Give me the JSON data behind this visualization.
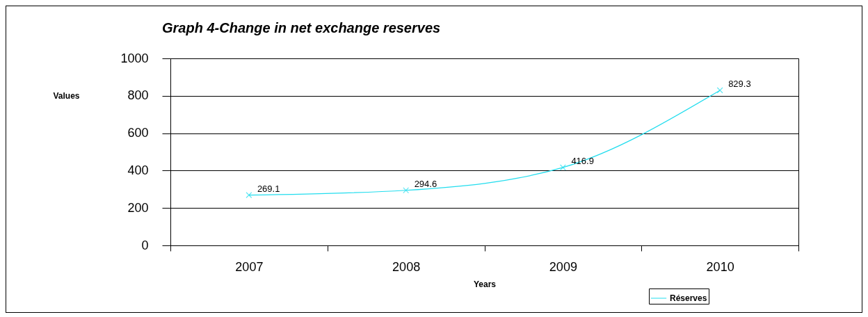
{
  "chart_data": {
    "type": "line",
    "title": "Graph 4-Change in net exchange reserves",
    "xlabel": "Years",
    "ylabel": "Values",
    "categories": [
      "2007",
      "2008",
      "2009",
      "2010"
    ],
    "series": [
      {
        "name": "Réserves",
        "color": "#22ddee",
        "values": [
          269.1,
          294.6,
          416.9,
          829.3
        ]
      }
    ],
    "ylim": [
      0,
      1000
    ],
    "yticks": [
      0,
      200,
      400,
      600,
      800,
      1000
    ],
    "grid": "y",
    "legend": "bottom right",
    "marker": "cross",
    "line_style": "solid",
    "data_labels": true
  }
}
